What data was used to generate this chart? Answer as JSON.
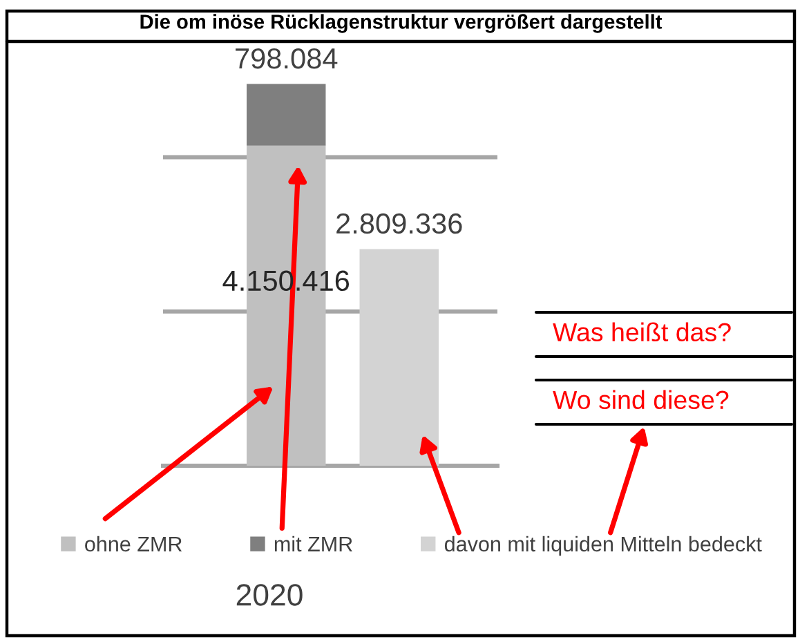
{
  "chart_data": {
    "type": "bar",
    "title": "Die om inöse Rücklagenstruktur vergrößert dargestellt",
    "xlabel": "2020",
    "categories": [
      null,
      null
    ],
    "stacked": true,
    "series": [
      {
        "name": "ohne ZMR",
        "color": "#c0c0c0",
        "values": [
          4150416,
          null
        ],
        "value_labels": [
          "4.150.416",
          null
        ]
      },
      {
        "name": "mit ZMR",
        "color": "#7f7f7f",
        "values": [
          798084,
          null
        ],
        "value_labels": [
          "798.084",
          null
        ]
      },
      {
        "name": "davon mit liquiden Mitteln bedeckt",
        "color": "#d3d3d3",
        "values": [
          null,
          2809336
        ],
        "value_labels": [
          null,
          "2.809.336"
        ]
      }
    ],
    "ylim": [
      0,
      5500000
    ],
    "yticks": [
      {
        "value": 0,
        "label": null
      },
      {
        "value": 2000000,
        "label": null
      },
      {
        "value": 4000000,
        "label": null
      }
    ],
    "grid": "y",
    "legend": "bottom",
    "tick_labels": false,
    "annotations": [
      "Was heißt das?",
      "Wo sind diese?"
    ]
  }
}
